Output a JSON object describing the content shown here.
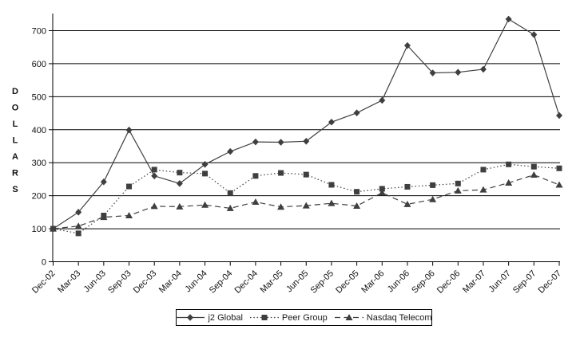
{
  "chart_data": {
    "type": "line",
    "title": "",
    "xlabel": "",
    "ylabel": "DOLLARS",
    "categories": [
      "Dec-02",
      "Mar-03",
      "Jun-03",
      "Sep-03",
      "Dec-03",
      "Mar-04",
      "Jun-04",
      "Sep-04",
      "Dec-04",
      "Mar-05",
      "Jun-05",
      "Sep-05",
      "Dec-05",
      "Mar-06",
      "Jun-06",
      "Sep-06",
      "Dec-06",
      "Mar-07",
      "Jun-07",
      "Sep-07",
      "Dec-07"
    ],
    "y_ticks": [
      0,
      100,
      200,
      300,
      400,
      500,
      600,
      700
    ],
    "ylim": [
      0,
      750
    ],
    "grid": "horizontal-only",
    "legend_position": "bottom-center",
    "axis_color": "#000000",
    "series": [
      {
        "name": "j2 Global",
        "marker": "diamond",
        "line_style": "solid",
        "color": "#3f3f3f",
        "values": [
          100,
          150,
          242,
          399,
          260,
          237,
          295,
          334,
          363,
          362,
          365,
          423,
          451,
          489,
          655,
          572,
          574,
          583,
          735,
          688,
          443
        ]
      },
      {
        "name": "Peer Group",
        "marker": "square",
        "line_style": "dotted",
        "color": "#3f3f3f",
        "values": [
          100,
          86,
          140,
          228,
          279,
          270,
          267,
          208,
          260,
          269,
          264,
          233,
          212,
          221,
          227,
          232,
          237,
          279,
          295,
          288,
          283
        ]
      },
      {
        "name": "Nasdaq Telecom",
        "marker": "triangle",
        "line_style": "dashed",
        "color": "#3f3f3f",
        "values": [
          100,
          108,
          135,
          140,
          168,
          167,
          172,
          162,
          181,
          166,
          170,
          177,
          169,
          209,
          174,
          189,
          215,
          218,
          239,
          263,
          233
        ]
      }
    ]
  }
}
